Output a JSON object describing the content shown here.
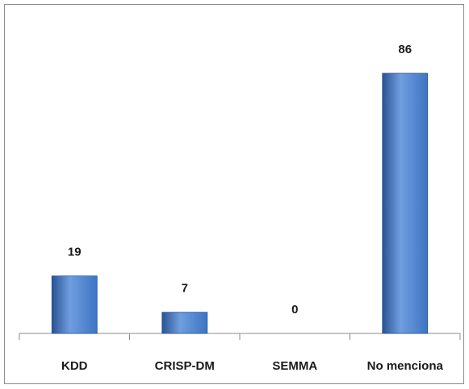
{
  "chart_data": {
    "type": "bar",
    "title": "",
    "xlabel": "",
    "ylabel": "",
    "categories": [
      "KDD",
      "CRISP-DM",
      "SEMMA",
      "No menciona"
    ],
    "values": [
      19,
      7,
      0,
      86
    ],
    "data_labels": [
      "19",
      "7",
      "0",
      "86"
    ],
    "ylim": [
      0,
      86
    ],
    "grid": false,
    "legend": "none",
    "bar_color": "#3e74c3",
    "bar_color_light": "#6f9ee0",
    "bar_color_dark": "#2a5291",
    "axis_color": "#8c8c8c"
  }
}
